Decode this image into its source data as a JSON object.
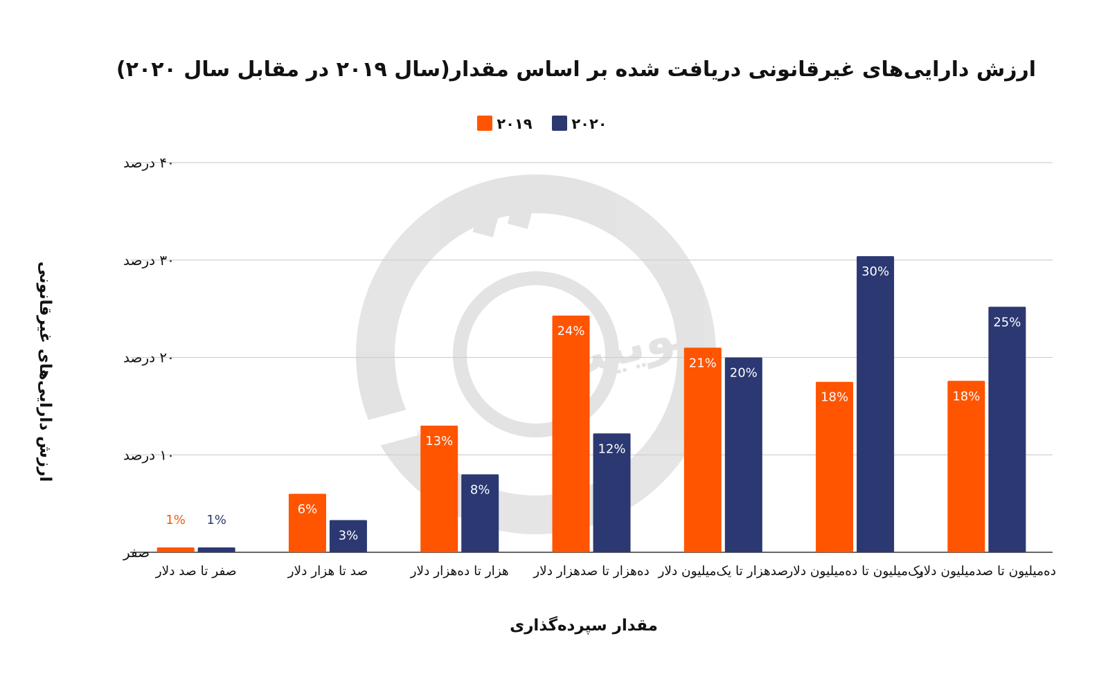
{
  "chart_data": {
    "type": "bar",
    "title": "ارزش دارایی‌های غیرقانونی دریافت شده بر اساس مقدار(سال ۲۰۱۹ در مقابل سال ۲۰۲۰)",
    "xlabel": "مقدار سپرده‌گذاری",
    "ylabel": "ارزش دارایی‌های غیرقانونی",
    "ylim": [
      0,
      40
    ],
    "yticks": [
      {
        "value": 0,
        "label": "صفر"
      },
      {
        "value": 10,
        "label": "۱۰ درصد"
      },
      {
        "value": 20,
        "label": "۲۰ درصد"
      },
      {
        "value": 30,
        "label": "۳۰ درصد"
      },
      {
        "value": 40,
        "label": "۴۰ درصد"
      }
    ],
    "grid": true,
    "legend_position": "top-center",
    "categories": [
      [
        "صفر تا صد دلار"
      ],
      [
        "صد تا هزار دلار"
      ],
      [
        "هزار تا ده‌هزار دلار"
      ],
      [
        "ده‌هزار تا صدهزار دلار"
      ],
      [
        "صدهزار تا یک‌میلیون دلار"
      ],
      [
        "یک‌میلیون تا ده‌میلیون دلار"
      ],
      [
        "ده‌میلیون تا صدمیلیون دلار"
      ]
    ],
    "series": [
      {
        "name": "۲۰۱۹",
        "color": "#ff5400",
        "values": [
          0.5,
          6,
          13,
          24.3,
          21,
          17.5,
          17.6
        ],
        "labels": [
          "1%",
          "6%",
          "13%",
          "24%",
          "21%",
          "18%",
          "18%"
        ]
      },
      {
        "name": "۲۰۲۰",
        "color": "#2b3871",
        "values": [
          0.5,
          3.3,
          8,
          12.2,
          20,
          30.4,
          25.2
        ],
        "labels": [
          "1%",
          "3%",
          "8%",
          "12%",
          "20%",
          "30%",
          "25%"
        ]
      }
    ],
    "watermark": "توییت"
  }
}
